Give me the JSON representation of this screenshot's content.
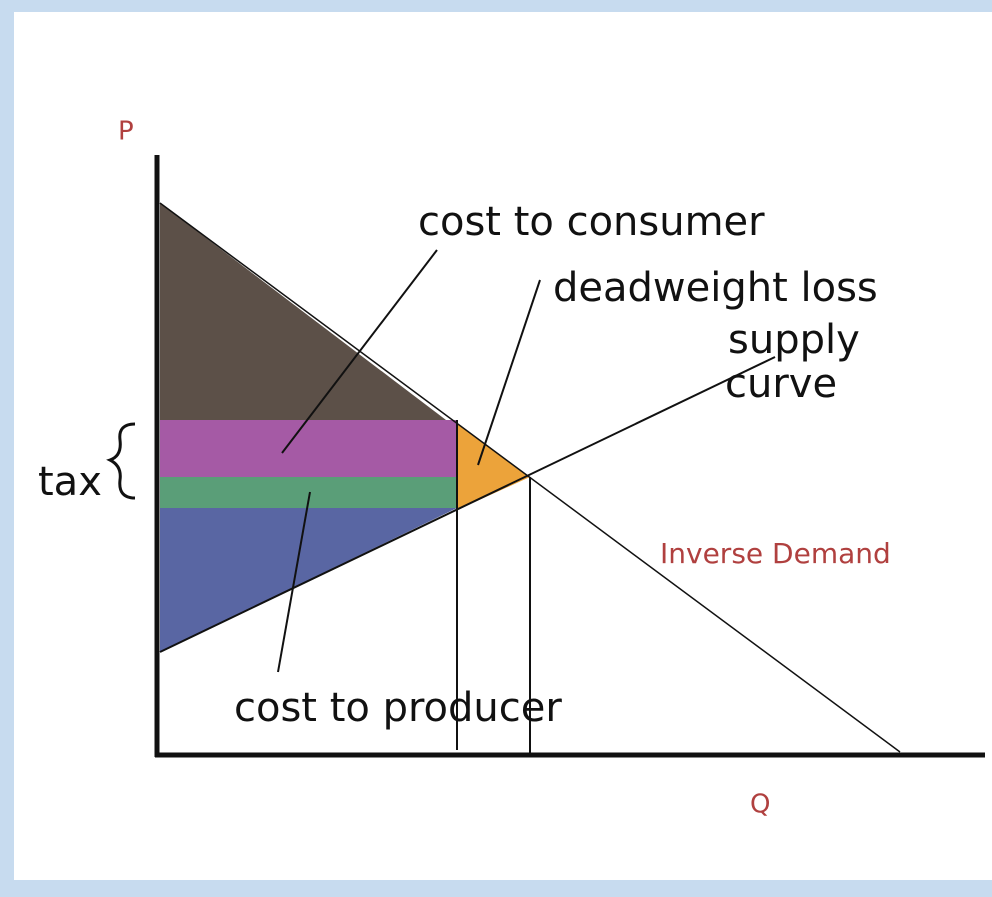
{
  "axes": {
    "y_label": "P",
    "x_label": "Q"
  },
  "labels": {
    "cost_to_consumer": "cost to consumer",
    "deadweight_loss": "deadweight loss",
    "supply_line1": "supply",
    "supply_line2": "curve",
    "tax": "tax",
    "inverse_demand": "Inverse Demand",
    "cost_to_producer": "cost to producer"
  }
}
